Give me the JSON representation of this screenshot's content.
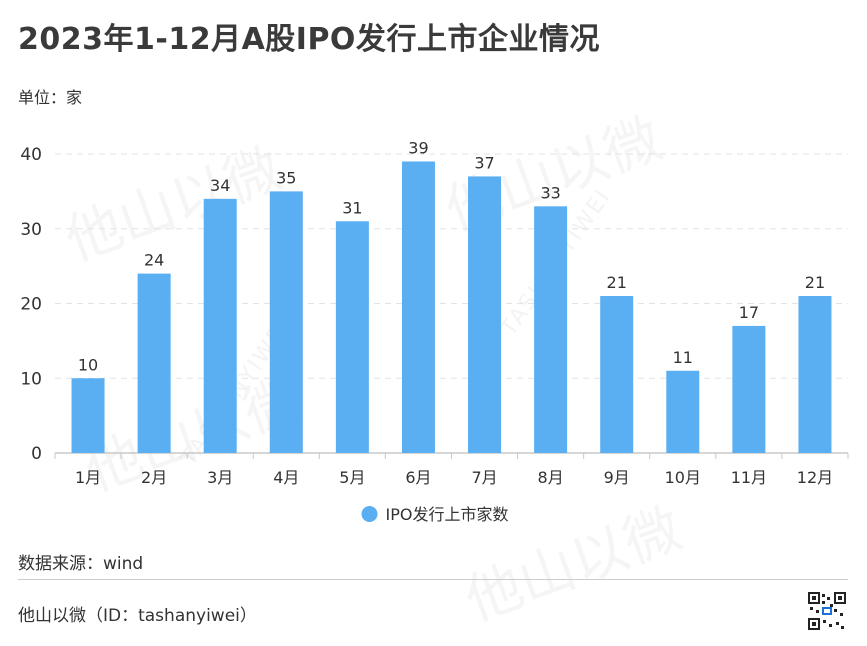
{
  "title": "2023年1-12月A股IPO发行上市企业情况",
  "unit_label": "单位：家",
  "source_label": "数据来源：wind",
  "footer_label": "他山以微（ID：tashanyiwei）",
  "watermark": {
    "text": "TASHANYIWEI",
    "mark": "他山以微"
  },
  "colors": {
    "bar": "#5aaef2",
    "grid": "#e3e3e3",
    "axis": "#c8c8c8",
    "text": "#333333"
  },
  "chart_data": {
    "type": "bar",
    "title": "2023年1-12月A股IPO发行上市企业情况",
    "categories": [
      "1月",
      "2月",
      "3月",
      "4月",
      "5月",
      "6月",
      "7月",
      "8月",
      "9月",
      "10月",
      "11月",
      "12月"
    ],
    "series": [
      {
        "name": "IPO发行上市家数",
        "values": [
          10,
          24,
          34,
          35,
          31,
          39,
          37,
          33,
          21,
          11,
          17,
          21
        ]
      }
    ],
    "ylim": [
      0,
      40
    ],
    "yticks": [
      0,
      10,
      20,
      30,
      40
    ],
    "xlabel": "",
    "ylabel": "单位：家",
    "grid": true,
    "legend": "bottom-center"
  }
}
